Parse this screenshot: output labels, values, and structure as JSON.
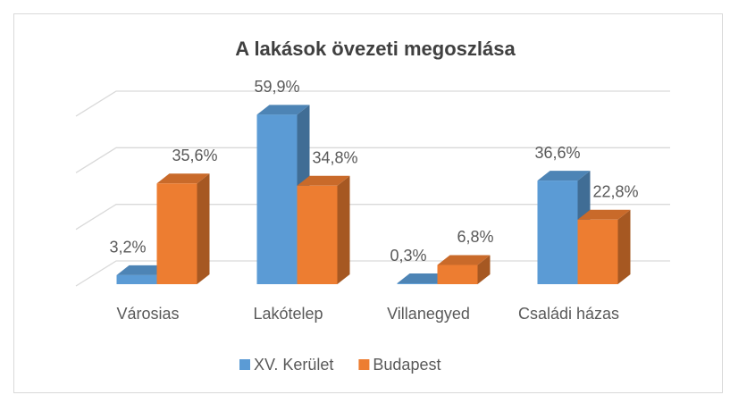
{
  "chart_data": {
    "type": "bar3d",
    "title": "A lakások övezeti megoszlása",
    "categories": [
      "Városias",
      "Lakótelep",
      "Villanegyed",
      "Családi házas"
    ],
    "series": [
      {
        "name": "XV. Kerület",
        "color": "#5b9bd5",
        "values": [
          3.2,
          59.9,
          0.3,
          36.6
        ],
        "value_labels": [
          "3,2%",
          "59,9%",
          "0,3%",
          "36,6%"
        ]
      },
      {
        "name": "Budapest",
        "color": "#ed7d31",
        "values": [
          35.6,
          34.8,
          6.8,
          22.8
        ],
        "value_labels": [
          "35,6%",
          "34,8%",
          "6,8%",
          "22,8%"
        ]
      }
    ],
    "ylim": [
      0,
      60
    ],
    "yticks": [
      0,
      20,
      40,
      60
    ],
    "grid": true,
    "legend": "bottom"
  }
}
